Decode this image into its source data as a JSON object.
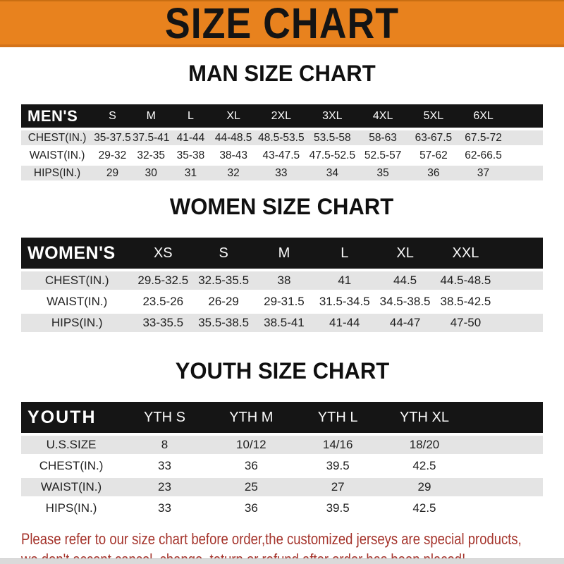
{
  "banner": {
    "title": "SIZE CHART"
  },
  "colors": {
    "banner_orange": "#E8821E",
    "header_black": "#151515",
    "row_gray": "#E4E4E4",
    "footer_red": "#A5342C"
  },
  "men": {
    "heading": "MAN SIZE CHART",
    "table": {
      "title": "MEN'S",
      "sizes": [
        "S",
        "M",
        "L",
        "XL",
        "2XL",
        "3XL",
        "4XL",
        "5XL",
        "6XL"
      ],
      "rows": [
        {
          "label": "CHEST(IN.)",
          "values": [
            "35-37.5",
            "37.5-41",
            "41-44",
            "44-48.5",
            "48.5-53.5",
            "53.5-58",
            "58-63",
            "63-67.5",
            "67.5-72"
          ]
        },
        {
          "label": "WAIST(IN.)",
          "values": [
            "29-32",
            "32-35",
            "35-38",
            "38-43",
            "43-47.5",
            "47.5-52.5",
            "52.5-57",
            "57-62",
            "62-66.5"
          ]
        },
        {
          "label": "HIPS(IN.)",
          "values": [
            "29",
            "30",
            "31",
            "32",
            "33",
            "34",
            "35",
            "36",
            "37"
          ]
        }
      ]
    }
  },
  "women": {
    "heading": "WOMEN SIZE CHART",
    "table": {
      "title": "WOMEN'S",
      "sizes": [
        "XS",
        "S",
        "M",
        "L",
        "XL",
        "XXL"
      ],
      "rows": [
        {
          "label": "CHEST(IN.)",
          "values": [
            "29.5-32.5",
            "32.5-35.5",
            "38",
            "41",
            "44.5",
            "44.5-48.5"
          ]
        },
        {
          "label": "WAIST(IN.)",
          "values": [
            "23.5-26",
            "26-29",
            "29-31.5",
            "31.5-34.5",
            "34.5-38.5",
            "38.5-42.5"
          ]
        },
        {
          "label": "HIPS(IN.)",
          "values": [
            "33-35.5",
            "35.5-38.5",
            "38.5-41",
            "41-44",
            "44-47",
            "47-50"
          ]
        }
      ]
    }
  },
  "youth": {
    "heading": "YOUTH SIZE CHART",
    "table": {
      "title": "YOUTH",
      "sizes": [
        "YTH S",
        "YTH M",
        "YTH L",
        "YTH XL"
      ],
      "rows": [
        {
          "label": "U.S.SIZE",
          "values": [
            "8",
            "10/12",
            "14/16",
            "18/20"
          ]
        },
        {
          "label": "CHEST(IN.)",
          "values": [
            "33",
            "36",
            "39.5",
            "42.5"
          ]
        },
        {
          "label": "WAIST(IN.)",
          "values": [
            "23",
            "25",
            "27",
            "29"
          ]
        },
        {
          "label": "HIPS(IN.)",
          "values": [
            "33",
            "36",
            "39.5",
            "42.5"
          ]
        }
      ]
    }
  },
  "footer": {
    "line1": "Please refer to our size chart before order,the customized jerseys are special products,",
    "line2": "we don't accept cancel, change, teturn or refund after order has been placed!"
  }
}
